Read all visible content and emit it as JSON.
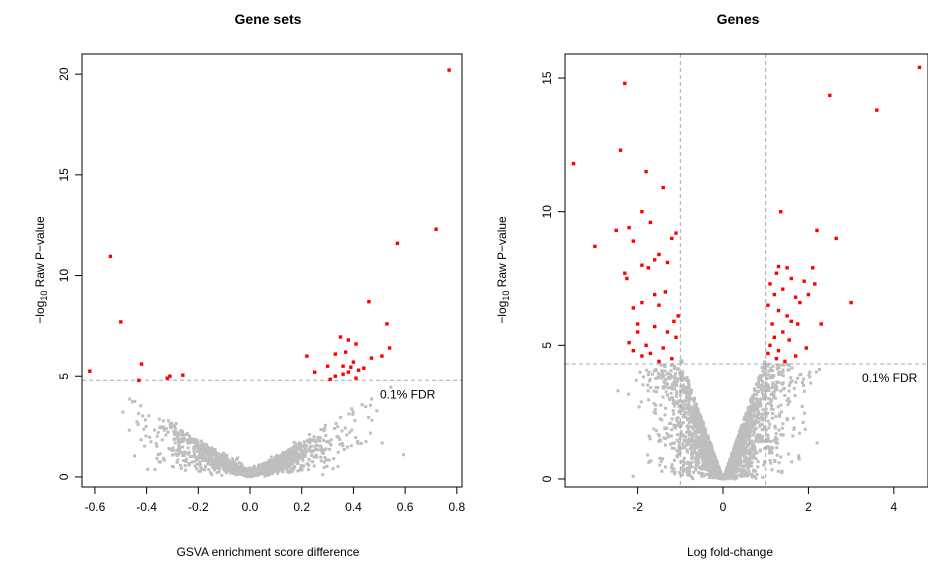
{
  "chart_data": [
    {
      "type": "scatter",
      "title": "Gene sets",
      "xlabel": "GSVA enrichment score difference",
      "ylabel_prefix": "−log",
      "ylabel_sub": "10",
      "ylabel_rest": " Raw P−value",
      "xlim": [
        -0.65,
        0.82
      ],
      "ylim": [
        -0.5,
        21
      ],
      "xticks": [
        -0.6,
        -0.4,
        -0.2,
        0.0,
        0.2,
        0.4,
        0.6,
        0.8
      ],
      "xtick_labels": [
        "-0.6",
        "-0.4",
        "-0.2",
        "0.0",
        "0.2",
        "0.4",
        "0.6",
        "0.8"
      ],
      "yticks": [
        0,
        5,
        10,
        15,
        20
      ],
      "ytick_labels": [
        "0",
        "5",
        "10",
        "15",
        "20"
      ],
      "fdr_threshold": 4.8,
      "fdr_label": "0.1% FDR",
      "background": {
        "color": "#bebebe",
        "count": 1400,
        "shape": "v",
        "left_slope": 8.5,
        "right_slope": 8.0,
        "x_range": [
          -0.5,
          0.6
        ]
      },
      "significant_color": "#ff0000",
      "significant": [
        [
          0.77,
          20.2
        ],
        [
          0.72,
          12.3
        ],
        [
          0.57,
          11.6
        ],
        [
          -0.54,
          10.95
        ],
        [
          -0.5,
          7.7
        ],
        [
          0.46,
          8.7
        ],
        [
          0.53,
          7.6
        ],
        [
          0.38,
          6.8
        ],
        [
          0.41,
          6.6
        ],
        [
          0.35,
          6.95
        ],
        [
          0.54,
          6.4
        ],
        [
          0.51,
          6.0
        ],
        [
          0.47,
          5.9
        ],
        [
          0.33,
          6.1
        ],
        [
          0.37,
          6.2
        ],
        [
          0.22,
          6.0
        ],
        [
          0.4,
          5.7
        ],
        [
          0.36,
          5.5
        ],
        [
          0.42,
          5.3
        ],
        [
          0.38,
          5.2
        ],
        [
          0.3,
          5.5
        ],
        [
          0.39,
          5.45
        ],
        [
          0.25,
          5.2
        ],
        [
          0.33,
          5.0
        ],
        [
          0.31,
          4.85
        ],
        [
          -0.62,
          5.25
        ],
        [
          -0.42,
          5.6
        ],
        [
          -0.31,
          5.0
        ],
        [
          -0.32,
          4.9
        ],
        [
          -0.26,
          5.05
        ],
        [
          -0.43,
          4.8
        ],
        [
          0.41,
          4.9
        ],
        [
          0.36,
          5.1
        ],
        [
          0.44,
          5.4
        ]
      ]
    },
    {
      "type": "scatter",
      "title": "Genes",
      "xlabel": "Log fold-change",
      "ylabel_prefix": "−log",
      "ylabel_sub": "10",
      "ylabel_rest": " Raw P−value",
      "xlim": [
        -3.7,
        4.8
      ],
      "ylim": [
        -0.3,
        15.9
      ],
      "xticks": [
        -2,
        0,
        2,
        4
      ],
      "xtick_labels": [
        "-2",
        "0",
        "2",
        "4"
      ],
      "yticks": [
        0,
        5,
        10,
        15
      ],
      "ytick_labels": [
        "0",
        "5",
        "10",
        "15"
      ],
      "fdr_threshold": 4.3,
      "fdr_label": "0.1% FDR",
      "fold_change_lines": [
        -1,
        1
      ],
      "background": {
        "color": "#bebebe",
        "count": 2200,
        "shape": "volcano",
        "x_range": [
          -2.6,
          2.6
        ]
      },
      "significant_color": "#ff0000",
      "significant": [
        [
          4.6,
          15.4
        ],
        [
          2.5,
          14.35
        ],
        [
          3.6,
          13.8
        ],
        [
          -2.3,
          14.8
        ],
        [
          -3.5,
          11.8
        ],
        [
          -2.4,
          12.3
        ],
        [
          -1.4,
          10.9
        ],
        [
          -1.8,
          11.5
        ],
        [
          1.35,
          10.0
        ],
        [
          -1.9,
          10.0
        ],
        [
          -3.0,
          8.7
        ],
        [
          -2.5,
          9.3
        ],
        [
          -2.2,
          9.4
        ],
        [
          -1.1,
          9.2
        ],
        [
          -1.7,
          9.6
        ],
        [
          2.2,
          9.3
        ],
        [
          2.65,
          9.0
        ],
        [
          -2.1,
          8.9
        ],
        [
          -1.2,
          9.0
        ],
        [
          -1.9,
          8.0
        ],
        [
          -1.5,
          8.4
        ],
        [
          -1.6,
          8.2
        ],
        [
          -1.3,
          8.1
        ],
        [
          -1.75,
          7.9
        ],
        [
          -2.3,
          7.7
        ],
        [
          -2.25,
          7.5
        ],
        [
          -1.35,
          7.0
        ],
        [
          -1.5,
          6.5
        ],
        [
          -1.9,
          6.6
        ],
        [
          -2.1,
          6.4
        ],
        [
          -2.0,
          5.8
        ],
        [
          -1.6,
          5.7
        ],
        [
          -1.3,
          5.5
        ],
        [
          -1.1,
          5.3
        ],
        [
          -1.8,
          5.0
        ],
        [
          -2.2,
          5.1
        ],
        [
          -1.4,
          4.9
        ],
        [
          -1.7,
          4.7
        ],
        [
          -1.2,
          4.5
        ],
        [
          -1.9,
          4.6
        ],
        [
          -2.1,
          4.8
        ],
        [
          -1.5,
          4.4
        ],
        [
          -1.05,
          6.1
        ],
        [
          -1.15,
          5.9
        ],
        [
          -1.6,
          6.9
        ],
        [
          -2.0,
          5.5
        ],
        [
          1.3,
          7.95
        ],
        [
          1.5,
          7.9
        ],
        [
          1.25,
          7.7
        ],
        [
          1.6,
          7.5
        ],
        [
          1.9,
          7.4
        ],
        [
          2.1,
          7.9
        ],
        [
          2.15,
          7.3
        ],
        [
          1.1,
          7.3
        ],
        [
          1.4,
          7.1
        ],
        [
          1.2,
          6.9
        ],
        [
          1.7,
          6.8
        ],
        [
          1.05,
          6.5
        ],
        [
          1.3,
          6.3
        ],
        [
          1.5,
          6.1
        ],
        [
          1.8,
          6.6
        ],
        [
          2.0,
          6.9
        ],
        [
          1.15,
          5.8
        ],
        [
          1.6,
          5.9
        ],
        [
          1.4,
          5.5
        ],
        [
          1.2,
          5.3
        ],
        [
          1.1,
          5.0
        ],
        [
          1.55,
          5.2
        ],
        [
          1.3,
          4.8
        ],
        [
          1.7,
          4.6
        ],
        [
          1.45,
          4.4
        ],
        [
          2.3,
          5.8
        ],
        [
          1.75,
          5.8
        ],
        [
          3.0,
          6.6
        ],
        [
          1.95,
          4.9
        ],
        [
          1.25,
          4.5
        ],
        [
          1.05,
          4.7
        ]
      ]
    }
  ]
}
